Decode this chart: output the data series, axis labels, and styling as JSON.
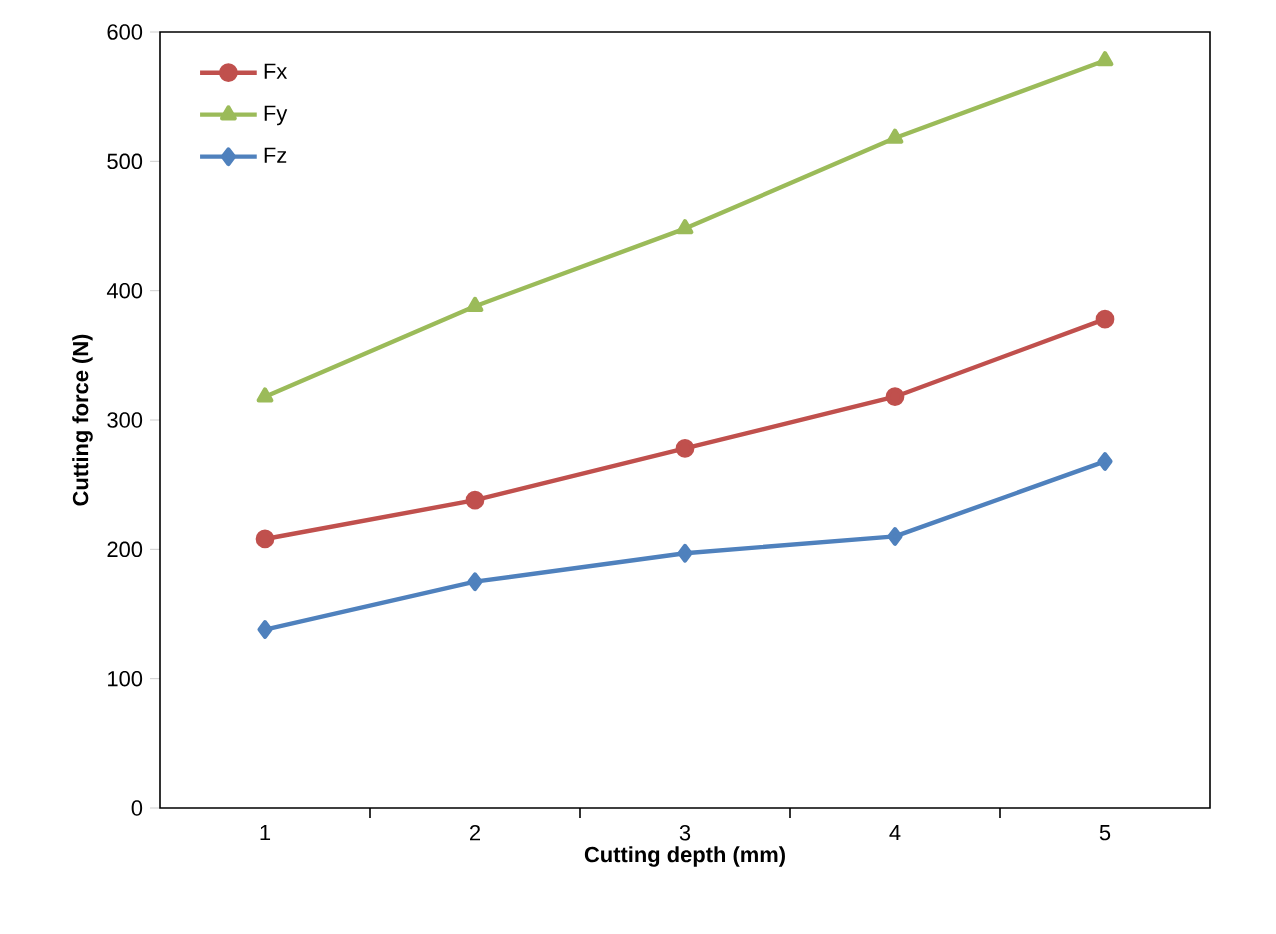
{
  "chart_data": {
    "type": "line",
    "xlabel": "Cutting depth (mm)",
    "ylabel": "Cutting force  (N)",
    "categories": [
      "1",
      "2",
      "3",
      "4",
      "5"
    ],
    "series": [
      {
        "name": "Fx",
        "color": "#c0504d",
        "marker": "circle",
        "values": [
          208,
          238,
          278,
          318,
          378
        ]
      },
      {
        "name": "Fy",
        "color": "#9bbb59",
        "marker": "triangle",
        "values": [
          318,
          388,
          448,
          518,
          578
        ]
      },
      {
        "name": "Fz",
        "color": "#4f81bd",
        "marker": "diamond",
        "values": [
          138,
          175,
          197,
          210,
          268
        ]
      }
    ],
    "ylim": [
      0,
      600
    ],
    "yticks": [
      0,
      100,
      200,
      300,
      400,
      500,
      600
    ],
    "legend": "top left",
    "line_style": "solid"
  }
}
